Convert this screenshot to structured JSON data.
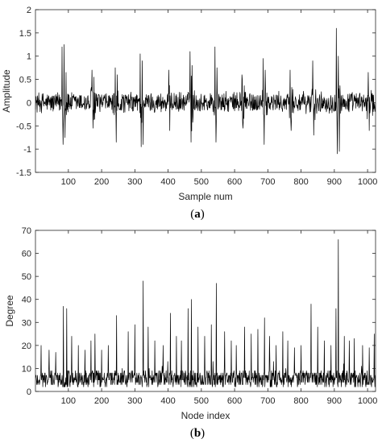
{
  "colors": {
    "axis": "#262626",
    "line": "#000000",
    "background": "#ffffff"
  },
  "chart_data": [
    {
      "type": "line",
      "caption": "(a)",
      "caption_letter": "a",
      "title": "",
      "xlabel": "Sample num",
      "ylabel": "Amplitude",
      "xlim": [
        1,
        1024
      ],
      "ylim": [
        -1.5,
        2
      ],
      "xticks": [
        100,
        200,
        300,
        400,
        500,
        600,
        700,
        800,
        900,
        1000
      ],
      "xtick_labels": [
        "100",
        "200",
        "300",
        "400",
        "500",
        "600",
        "700",
        "800",
        "900",
        "1000"
      ],
      "yticks": [
        -1.5,
        -1,
        -0.5,
        0,
        0.5,
        1,
        1.5,
        2
      ],
      "ytick_labels": [
        "-1.5",
        "-1",
        "-0.5",
        "0",
        "0.5",
        "1",
        "1.5",
        "2"
      ],
      "grid": false,
      "legend": "none",
      "baseline_noise_amplitude": 0.25,
      "bursts": [
        {
          "x": 88,
          "values": [
            1.2,
            -0.9,
            1.25,
            -0.75,
            0.65
          ]
        },
        {
          "x": 175,
          "values": [
            0.7,
            -0.55,
            0.55
          ]
        },
        {
          "x": 245,
          "values": [
            0.75,
            -0.85,
            0.6
          ]
        },
        {
          "x": 322,
          "values": [
            1.05,
            -0.95,
            0.9,
            -0.9
          ]
        },
        {
          "x": 405,
          "values": [
            0.7,
            -0.6
          ]
        },
        {
          "x": 470,
          "values": [
            1.1,
            -0.85,
            0.8
          ]
        },
        {
          "x": 545,
          "values": [
            1.2,
            -0.85,
            0.75
          ]
        },
        {
          "x": 625,
          "values": [
            0.6,
            -0.55
          ]
        },
        {
          "x": 690,
          "values": [
            0.95,
            -0.9,
            0.7
          ]
        },
        {
          "x": 770,
          "values": [
            0.7,
            -0.6
          ]
        },
        {
          "x": 838,
          "values": [
            0.9,
            -0.7
          ]
        },
        {
          "x": 912,
          "values": [
            1.6,
            -1.1,
            1.0,
            -1.05
          ]
        },
        {
          "x": 1005,
          "values": [
            0.65,
            -0.6
          ]
        }
      ]
    },
    {
      "type": "line",
      "caption": "(b)",
      "caption_letter": "b",
      "title": "",
      "xlabel": "Node index",
      "ylabel": "Degree",
      "xlim": [
        1,
        1024
      ],
      "ylim": [
        0,
        70
      ],
      "xticks": [
        100,
        200,
        300,
        400,
        500,
        600,
        700,
        800,
        900,
        1000
      ],
      "xtick_labels": [
        "100",
        "200",
        "300",
        "400",
        "500",
        "600",
        "700",
        "800",
        "900",
        "1000"
      ],
      "yticks": [
        0,
        10,
        20,
        30,
        40,
        50,
        60,
        70
      ],
      "ytick_labels": [
        "0",
        "10",
        "20",
        "30",
        "40",
        "50",
        "60",
        "70"
      ],
      "grid": false,
      "legend": "none",
      "baseline_range": [
        2,
        9
      ],
      "peaks": [
        {
          "x": 18,
          "y": 20
        },
        {
          "x": 42,
          "y": 18
        },
        {
          "x": 62,
          "y": 17
        },
        {
          "x": 85,
          "y": 37
        },
        {
          "x": 95,
          "y": 36
        },
        {
          "x": 110,
          "y": 24
        },
        {
          "x": 130,
          "y": 20
        },
        {
          "x": 150,
          "y": 18
        },
        {
          "x": 168,
          "y": 22
        },
        {
          "x": 180,
          "y": 25
        },
        {
          "x": 200,
          "y": 18
        },
        {
          "x": 220,
          "y": 20
        },
        {
          "x": 245,
          "y": 33
        },
        {
          "x": 280,
          "y": 26
        },
        {
          "x": 300,
          "y": 29
        },
        {
          "x": 325,
          "y": 48
        },
        {
          "x": 340,
          "y": 28
        },
        {
          "x": 360,
          "y": 22
        },
        {
          "x": 385,
          "y": 20
        },
        {
          "x": 407,
          "y": 34
        },
        {
          "x": 425,
          "y": 24
        },
        {
          "x": 440,
          "y": 22
        },
        {
          "x": 460,
          "y": 36
        },
        {
          "x": 470,
          "y": 40
        },
        {
          "x": 490,
          "y": 28
        },
        {
          "x": 510,
          "y": 24
        },
        {
          "x": 530,
          "y": 29
        },
        {
          "x": 545,
          "y": 47
        },
        {
          "x": 570,
          "y": 26
        },
        {
          "x": 590,
          "y": 22
        },
        {
          "x": 605,
          "y": 20
        },
        {
          "x": 630,
          "y": 28
        },
        {
          "x": 650,
          "y": 25
        },
        {
          "x": 670,
          "y": 27
        },
        {
          "x": 690,
          "y": 32
        },
        {
          "x": 705,
          "y": 24
        },
        {
          "x": 725,
          "y": 20
        },
        {
          "x": 745,
          "y": 26
        },
        {
          "x": 760,
          "y": 22
        },
        {
          "x": 780,
          "y": 19
        },
        {
          "x": 800,
          "y": 20
        },
        {
          "x": 830,
          "y": 38
        },
        {
          "x": 850,
          "y": 28
        },
        {
          "x": 870,
          "y": 22
        },
        {
          "x": 890,
          "y": 20
        },
        {
          "x": 905,
          "y": 36
        },
        {
          "x": 912,
          "y": 66
        },
        {
          "x": 930,
          "y": 24
        },
        {
          "x": 945,
          "y": 22
        },
        {
          "x": 960,
          "y": 23
        },
        {
          "x": 985,
          "y": 20
        },
        {
          "x": 1005,
          "y": 19
        },
        {
          "x": 1020,
          "y": 25
        }
      ]
    }
  ]
}
